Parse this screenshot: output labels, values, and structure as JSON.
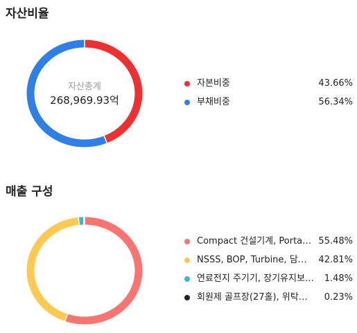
{
  "asset_ratio": {
    "title": "자산비율",
    "center_label": "자산총계",
    "center_value": "268,969.93억",
    "colors": [
      "#f03030",
      "#2f7fe8"
    ]
  },
  "sales": {
    "title": "매출 구성",
    "colors": [
      "#fc7470",
      "#fdc94e",
      "#3ab4e0",
      "#222233"
    ]
  },
  "chart_data": [
    {
      "type": "pie",
      "title": "자산비율",
      "categories": [
        "자본비중",
        "부채비중"
      ],
      "values": [
        43.66,
        56.34
      ],
      "labels": [
        "43.66%",
        "56.34%"
      ],
      "legend": "right"
    },
    {
      "type": "pie",
      "title": "매출 구성",
      "categories": [
        "Compact 건설기계, Porta…",
        "NSSS, BOP, Turbine, 담수…",
        "연료전지 주기기, 장기유지보…",
        "회원제 골프장(27홀), 위탁…"
      ],
      "values": [
        55.48,
        42.81,
        1.48,
        0.23
      ],
      "labels": [
        "55.48%",
        "42.81%",
        "1.48%",
        "0.23%"
      ],
      "legend": "right"
    }
  ]
}
